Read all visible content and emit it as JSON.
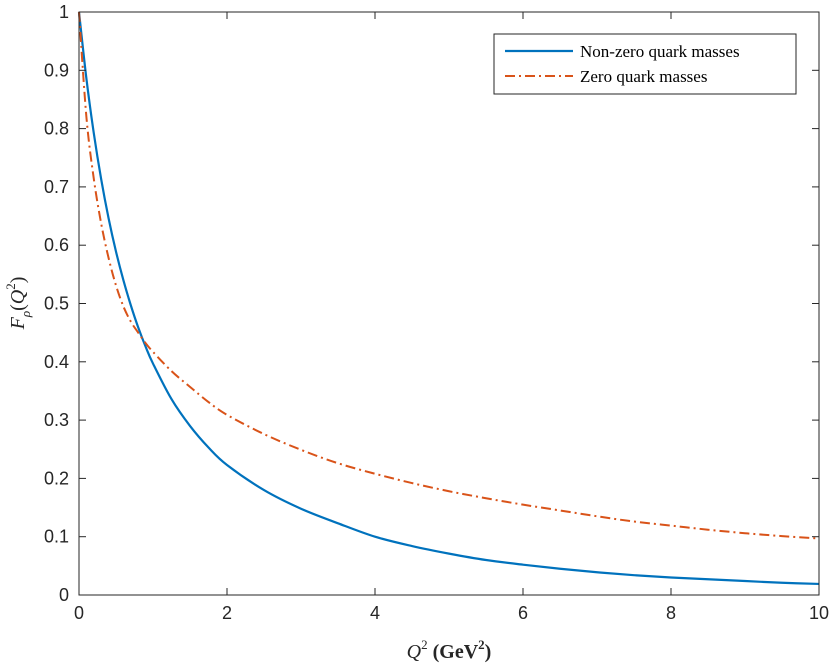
{
  "chart_data": {
    "type": "line",
    "title": "",
    "xlabel": "Q^2 (GeV^2)",
    "ylabel": "F_ρ(Q^2)",
    "xlabel_parts": {
      "q": "Q",
      "q_exp": "2",
      "open": " (",
      "unit": "GeV",
      "unit_exp": "2",
      "close": ")"
    },
    "ylabel_parts": {
      "f": "F",
      "f_sub": "ρ",
      "open": "(",
      "q": "Q",
      "q_exp": "2",
      "close": ")"
    },
    "xlim": [
      0,
      10
    ],
    "ylim": [
      0,
      1
    ],
    "xticks": [
      "0",
      "2",
      "4",
      "6",
      "8",
      "10"
    ],
    "yticks": [
      "0",
      "0.1",
      "0.2",
      "0.3",
      "0.4",
      "0.5",
      "0.6",
      "0.7",
      "0.8",
      "0.9",
      "1"
    ],
    "grid": false,
    "legend_position": "top-right",
    "series": [
      {
        "name": "Non-zero quark masses",
        "color": "#0072BD",
        "style": "solid",
        "x": [
          0,
          0.1,
          0.2,
          0.3,
          0.4,
          0.5,
          0.6,
          0.7,
          0.8,
          0.9,
          1.0,
          1.25,
          1.5,
          1.75,
          2.0,
          2.5,
          3.0,
          3.5,
          4.0,
          4.5,
          5.0,
          5.5,
          6.0,
          6.5,
          7.0,
          7.5,
          8.0,
          8.5,
          9.0,
          9.5,
          10.0
        ],
        "values": [
          1.0,
          0.886,
          0.792,
          0.713,
          0.646,
          0.589,
          0.54,
          0.497,
          0.459,
          0.426,
          0.397,
          0.336,
          0.29,
          0.253,
          0.223,
          0.18,
          0.148,
          0.123,
          0.1,
          0.084,
          0.071,
          0.06,
          0.052,
          0.045,
          0.039,
          0.034,
          0.03,
          0.027,
          0.024,
          0.021,
          0.019
        ]
      },
      {
        "name": "Zero quark masses",
        "color": "#D95319",
        "style": "dashdot",
        "x": [
          0,
          0.1,
          0.2,
          0.3,
          0.4,
          0.5,
          0.6,
          0.7,
          0.8,
          0.9,
          1.0,
          1.25,
          1.5,
          1.75,
          2.0,
          2.5,
          3.0,
          3.5,
          4.0,
          4.5,
          5.0,
          5.5,
          6.0,
          6.5,
          7.0,
          7.5,
          8.0,
          8.5,
          9.0,
          9.5,
          10.0
        ],
        "values": [
          1.0,
          0.82,
          0.714,
          0.637,
          0.578,
          0.531,
          0.495,
          0.469,
          0.45,
          0.432,
          0.417,
          0.384,
          0.357,
          0.331,
          0.309,
          0.276,
          0.249,
          0.226,
          0.208,
          0.192,
          0.178,
          0.166,
          0.155,
          0.145,
          0.135,
          0.126,
          0.119,
          0.112,
          0.106,
          0.101,
          0.097
        ]
      }
    ]
  }
}
